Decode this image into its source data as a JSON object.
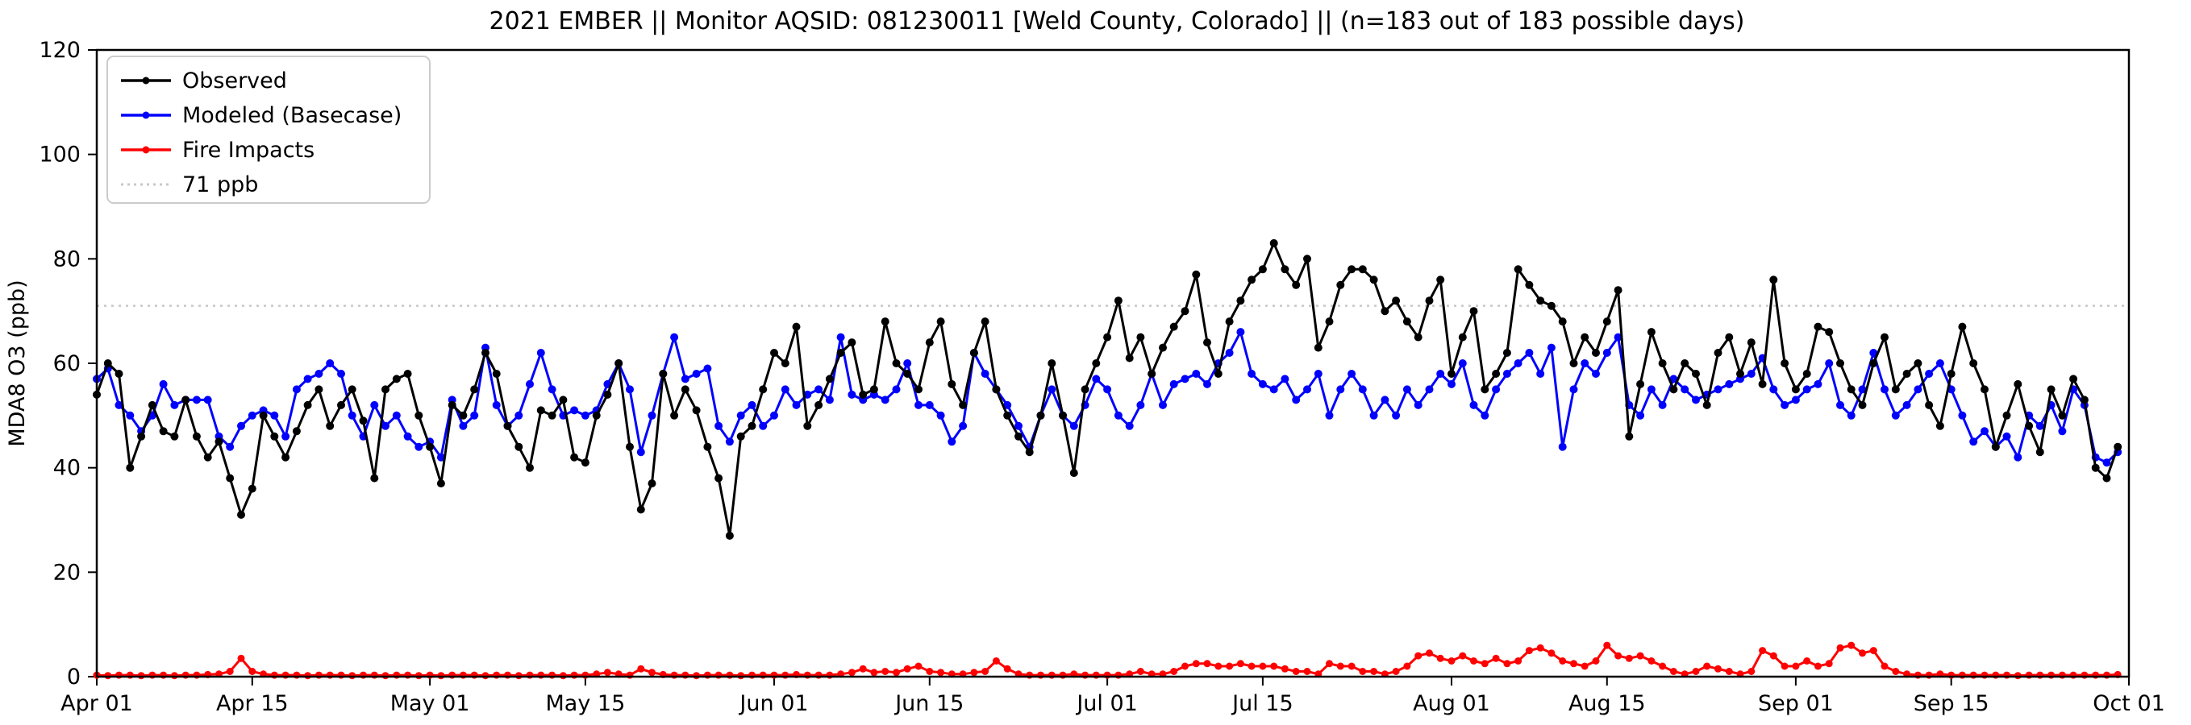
{
  "meta": {
    "campaign": "2021 EMBER",
    "monitor_aqsid": "081230011",
    "location": "Weld County, Colorado",
    "days_note": "n=183 out of 183 possible days"
  },
  "chart_data": {
    "type": "line",
    "title": "2021 EMBER || Monitor AQSID: 081230011 [Weld County, Colorado] || (n=183 out of 183 possible days)",
    "xlabel": "",
    "ylabel": "MDA8 O3 (ppb)",
    "ylim": [
      0,
      120
    ],
    "y_ticks": [
      0,
      20,
      40,
      60,
      80,
      100,
      120
    ],
    "x_range_days": 183,
    "x_unit": "daily values; index 0 = Apr 01 2021, one point per day through Sep 30 2021",
    "grid": false,
    "legend_position": "upper left",
    "x_ticks": [
      {
        "label": "Apr 01",
        "day": 0
      },
      {
        "label": "Apr 15",
        "day": 14
      },
      {
        "label": "May 01",
        "day": 30
      },
      {
        "label": "May 15",
        "day": 44
      },
      {
        "label": "Jun 01",
        "day": 61
      },
      {
        "label": "Jun 15",
        "day": 75
      },
      {
        "label": "Jul 01",
        "day": 91
      },
      {
        "label": "Jul 15",
        "day": 105
      },
      {
        "label": "Aug 01",
        "day": 122
      },
      {
        "label": "Aug 15",
        "day": 136
      },
      {
        "label": "Sep 01",
        "day": 153
      },
      {
        "label": "Sep 15",
        "day": 167
      },
      {
        "label": "Oct 01",
        "day": 183
      }
    ],
    "threshold": {
      "value": 71,
      "label": "71 ppb",
      "color": "#c8c8c8",
      "style": "dotted"
    },
    "series": [
      {
        "name": "Observed",
        "color": "#000000",
        "marker": "circle",
        "values": [
          54,
          60,
          58,
          40,
          46,
          52,
          47,
          46,
          53,
          46,
          42,
          45,
          38,
          31,
          36,
          50,
          46,
          42,
          47,
          52,
          55,
          48,
          52,
          55,
          49,
          38,
          55,
          57,
          58,
          50,
          44,
          37,
          52,
          50,
          55,
          62,
          58,
          48,
          44,
          40,
          51,
          50,
          53,
          42,
          41,
          50,
          54,
          60,
          44,
          32,
          37,
          58,
          50,
          55,
          51,
          44,
          38,
          27,
          46,
          48,
          55,
          62,
          60,
          67,
          48,
          52,
          57,
          62,
          64,
          54,
          55,
          68,
          60,
          58,
          55,
          64,
          68,
          56,
          52,
          62,
          68,
          55,
          50,
          46,
          43,
          50,
          60,
          50,
          39,
          55,
          60,
          65,
          72,
          61,
          65,
          58,
          63,
          67,
          70,
          77,
          64,
          58,
          68,
          72,
          76,
          78,
          83,
          78,
          75,
          80,
          63,
          68,
          75,
          78,
          78,
          76,
          70,
          72,
          68,
          65,
          72,
          76,
          58,
          65,
          70,
          55,
          58,
          62,
          78,
          75,
          72,
          71,
          68,
          60,
          65,
          62,
          68,
          74,
          46,
          56,
          66,
          60,
          55,
          60,
          58,
          52,
          62,
          65,
          58,
          64,
          56,
          76,
          60,
          55,
          58,
          67,
          66,
          60,
          55,
          52,
          60,
          65,
          55,
          58,
          60,
          52,
          48,
          58,
          67,
          60,
          55,
          44,
          50,
          56,
          48,
          43,
          55,
          50,
          57,
          53,
          40,
          38,
          44
        ]
      },
      {
        "name": "Modeled (Basecase)",
        "color": "#0000ff",
        "marker": "circle",
        "values": [
          57,
          59,
          52,
          50,
          47,
          50,
          56,
          52,
          53,
          53,
          53,
          46,
          44,
          48,
          50,
          51,
          50,
          46,
          55,
          57,
          58,
          60,
          58,
          50,
          46,
          52,
          48,
          50,
          46,
          44,
          45,
          42,
          53,
          48,
          50,
          63,
          52,
          48,
          50,
          56,
          62,
          55,
          50,
          51,
          50,
          51,
          56,
          60,
          55,
          43,
          50,
          58,
          65,
          57,
          58,
          59,
          48,
          45,
          50,
          52,
          48,
          50,
          55,
          52,
          54,
          55,
          53,
          65,
          54,
          53,
          54,
          53,
          55,
          60,
          52,
          52,
          50,
          45,
          48,
          62,
          58,
          55,
          52,
          48,
          44,
          50,
          55,
          50,
          48,
          52,
          57,
          55,
          50,
          48,
          52,
          58,
          52,
          56,
          57,
          58,
          56,
          60,
          62,
          66,
          58,
          56,
          55,
          57,
          53,
          55,
          58,
          50,
          55,
          58,
          55,
          50,
          53,
          50,
          55,
          52,
          55,
          58,
          56,
          60,
          52,
          50,
          55,
          58,
          60,
          62,
          58,
          63,
          44,
          55,
          60,
          58,
          62,
          65,
          52,
          50,
          55,
          52,
          57,
          55,
          53,
          54,
          55,
          56,
          57,
          58,
          61,
          55,
          52,
          53,
          55,
          56,
          60,
          52,
          50,
          55,
          62,
          55,
          50,
          52,
          55,
          58,
          60,
          55,
          50,
          45,
          47,
          44,
          46,
          42,
          50,
          48,
          52,
          47,
          55,
          52,
          42,
          41,
          43
        ]
      },
      {
        "name": "Fire Impacts",
        "color": "#ff0000",
        "marker": "circle",
        "values": [
          0.3,
          0.2,
          0.3,
          0.3,
          0.2,
          0.3,
          0.3,
          0.2,
          0.3,
          0.3,
          0.4,
          0.5,
          1.0,
          3.5,
          1.0,
          0.5,
          0.3,
          0.3,
          0.3,
          0.2,
          0.3,
          0.3,
          0.3,
          0.2,
          0.3,
          0.3,
          0.2,
          0.3,
          0.3,
          0.2,
          0.3,
          0.2,
          0.3,
          0.3,
          0.3,
          0.2,
          0.3,
          0.3,
          0.2,
          0.3,
          0.3,
          0.3,
          0.2,
          0.3,
          0.3,
          0.5,
          0.8,
          0.5,
          0.3,
          1.5,
          0.8,
          0.4,
          0.3,
          0.3,
          0.2,
          0.3,
          0.3,
          0.3,
          0.2,
          0.3,
          0.3,
          0.3,
          0.3,
          0.4,
          0.3,
          0.3,
          0.3,
          0.5,
          0.8,
          1.5,
          0.8,
          1.0,
          0.8,
          1.5,
          2.0,
          1.0,
          0.8,
          0.5,
          0.5,
          0.8,
          1.0,
          3.0,
          1.5,
          0.5,
          0.3,
          0.3,
          0.3,
          0.3,
          0.5,
          0.3,
          0.3,
          0.3,
          0.3,
          0.5,
          1.0,
          0.5,
          0.5,
          1.0,
          2.0,
          2.5,
          2.5,
          2.0,
          2.0,
          2.5,
          2.0,
          2.0,
          2.0,
          1.5,
          1.0,
          1.0,
          0.5,
          2.5,
          2.0,
          2.0,
          1.0,
          1.0,
          0.5,
          1.0,
          2.0,
          4.0,
          4.5,
          3.5,
          3.0,
          4.0,
          3.0,
          2.5,
          3.5,
          2.5,
          3.0,
          5.0,
          5.5,
          4.5,
          3.0,
          2.5,
          2.0,
          3.0,
          6.0,
          4.0,
          3.5,
          4.0,
          3.0,
          2.0,
          1.0,
          0.5,
          1.0,
          2.0,
          1.5,
          1.0,
          0.5,
          1.0,
          5.0,
          4.0,
          2.0,
          2.0,
          3.0,
          2.0,
          2.5,
          5.5,
          6.0,
          4.5,
          5.0,
          2.0,
          1.0,
          0.5,
          0.3,
          0.3,
          0.5,
          0.3,
          0.3,
          0.3,
          0.3,
          0.3,
          0.3,
          0.2,
          0.3,
          0.3,
          0.3,
          0.3,
          0.3,
          0.3,
          0.3,
          0.3,
          0.4
        ]
      }
    ]
  }
}
